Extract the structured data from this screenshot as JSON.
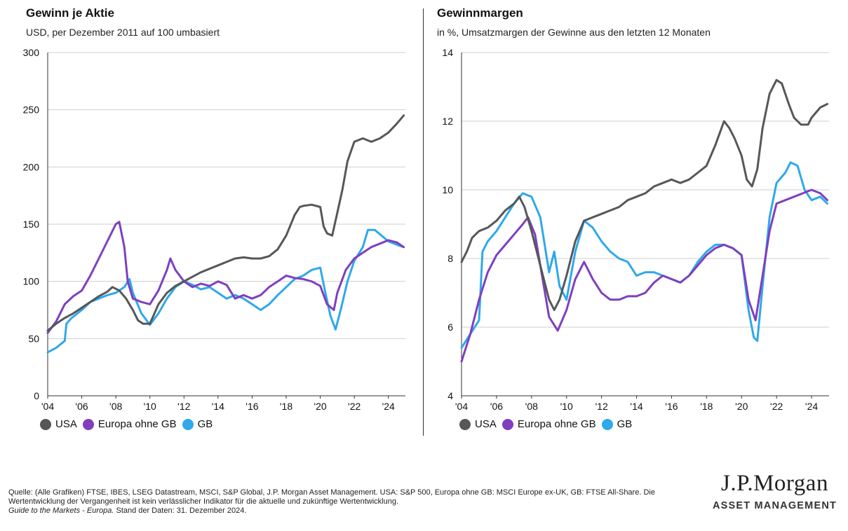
{
  "chart_data": [
    {
      "type": "line",
      "title": "Gewinn je Aktie",
      "subtitle": "USD, per Dezember 2011 auf 100 umbasiert",
      "xlabel": "",
      "ylabel": "",
      "ylim": [
        0,
        300
      ],
      "yticks": [
        "0",
        "50",
        "100",
        "150",
        "200",
        "250",
        "300"
      ],
      "xlim": [
        2004,
        2025
      ],
      "xticks": [
        "'04",
        "'06",
        "'08",
        "'10",
        "'12",
        "'14",
        "'16",
        "'18",
        "'20",
        "'22",
        "'24"
      ],
      "grid": true,
      "legend_position": "bottom-left",
      "series": [
        {
          "name": "USA",
          "color": "#555759",
          "x": [
            2004,
            2004.5,
            2005,
            2005.5,
            2006,
            2006.5,
            2007,
            2007.5,
            2007.8,
            2008.2,
            2008.6,
            2009,
            2009.3,
            2009.6,
            2010,
            2010.5,
            2011,
            2011.5,
            2012,
            2012.5,
            2013,
            2013.5,
            2014,
            2014.5,
            2015,
            2015.5,
            2016,
            2016.5,
            2017,
            2017.5,
            2018,
            2018.5,
            2018.8,
            2019,
            2019.5,
            2020,
            2020.2,
            2020.4,
            2020.7,
            2021,
            2021.3,
            2021.6,
            2022,
            2022.5,
            2023,
            2023.5,
            2024,
            2024.5,
            2024.9
          ],
          "y": [
            57,
            63,
            68,
            72,
            77,
            82,
            87,
            91,
            95,
            92,
            85,
            75,
            66,
            63,
            63,
            80,
            90,
            96,
            100,
            104,
            108,
            111,
            114,
            117,
            120,
            121,
            120,
            120,
            122,
            128,
            140,
            158,
            165,
            166,
            167,
            165,
            148,
            142,
            140,
            160,
            180,
            205,
            222,
            225,
            222,
            225,
            230,
            238,
            245
          ]
        },
        {
          "name": "Europa ohne GB",
          "color": "#7f3fbf",
          "x": [
            2004,
            2004.5,
            2005,
            2005.5,
            2006,
            2006.5,
            2007,
            2007.5,
            2008,
            2008.2,
            2008.5,
            2008.7,
            2009,
            2009.5,
            2010,
            2010.5,
            2011,
            2011.2,
            2011.5,
            2012,
            2012.5,
            2013,
            2013.5,
            2014,
            2014.5,
            2015,
            2015.5,
            2016,
            2016.5,
            2017,
            2017.5,
            2018,
            2018.5,
            2019,
            2019.5,
            2020,
            2020.4,
            2020.8,
            2021,
            2021.5,
            2022,
            2022.5,
            2023,
            2023.5,
            2024,
            2024.5,
            2024.9
          ],
          "y": [
            55,
            65,
            80,
            87,
            92,
            105,
            120,
            135,
            150,
            152,
            130,
            100,
            85,
            82,
            80,
            92,
            110,
            120,
            110,
            100,
            95,
            98,
            96,
            100,
            97,
            85,
            88,
            85,
            88,
            95,
            100,
            105,
            103,
            102,
            100,
            96,
            80,
            75,
            90,
            110,
            120,
            125,
            130,
            133,
            136,
            134,
            130
          ]
        },
        {
          "name": "GB",
          "color": "#2fa8ec",
          "x": [
            2004,
            2004.5,
            2005,
            2005.1,
            2005.4,
            2006,
            2006.5,
            2007,
            2007.5,
            2008,
            2008.5,
            2008.8,
            2009,
            2009.5,
            2010,
            2010.5,
            2011,
            2011.5,
            2012,
            2012.5,
            2013,
            2013.5,
            2014,
            2014.5,
            2015,
            2015.5,
            2016,
            2016.5,
            2017,
            2017.5,
            2018,
            2018.5,
            2019,
            2019.5,
            2020,
            2020.3,
            2020.6,
            2020.9,
            2021.2,
            2021.6,
            2022,
            2022.5,
            2022.8,
            2023.2,
            2023.6,
            2024,
            2024.5,
            2024.9
          ],
          "y": [
            38,
            42,
            48,
            63,
            68,
            75,
            82,
            85,
            88,
            90,
            95,
            102,
            90,
            72,
            62,
            72,
            85,
            95,
            100,
            97,
            93,
            95,
            90,
            85,
            88,
            85,
            80,
            75,
            80,
            88,
            95,
            102,
            105,
            110,
            112,
            90,
            70,
            58,
            75,
            100,
            118,
            130,
            145,
            145,
            140,
            135,
            132,
            130
          ]
        }
      ]
    },
    {
      "type": "line",
      "title": "Gewinnmargen",
      "subtitle": "in %, Umsatzmargen der Gewinne aus den letzten 12 Monaten",
      "xlabel": "",
      "ylabel": "",
      "ylim": [
        4,
        14
      ],
      "yticks": [
        "4",
        "6",
        "8",
        "10",
        "12",
        "14"
      ],
      "xlim": [
        2004,
        2025
      ],
      "xticks": [
        "'04",
        "'06",
        "'08",
        "'10",
        "'12",
        "'14",
        "'16",
        "'18",
        "'20",
        "'22",
        "'24"
      ],
      "grid": true,
      "legend_position": "bottom-left",
      "series": [
        {
          "name": "USA",
          "color": "#555759",
          "x": [
            2004,
            2004.3,
            2004.6,
            2005,
            2005.5,
            2006,
            2006.5,
            2007,
            2007.3,
            2007.6,
            2008,
            2008.5,
            2009,
            2009.3,
            2009.6,
            2010,
            2010.5,
            2011,
            2011.5,
            2012,
            2012.5,
            2013,
            2013.5,
            2014,
            2014.5,
            2015,
            2015.5,
            2016,
            2016.5,
            2017,
            2017.5,
            2018,
            2018.5,
            2019,
            2019.3,
            2019.6,
            2020,
            2020.3,
            2020.6,
            2020.9,
            2021.2,
            2021.6,
            2022,
            2022.3,
            2022.7,
            2023,
            2023.4,
            2023.8,
            2024,
            2024.5,
            2024.9
          ],
          "y": [
            7.9,
            8.2,
            8.6,
            8.8,
            8.9,
            9.1,
            9.4,
            9.6,
            9.8,
            9.5,
            8.8,
            7.8,
            6.8,
            6.5,
            6.8,
            7.5,
            8.5,
            9.1,
            9.2,
            9.3,
            9.4,
            9.5,
            9.7,
            9.8,
            9.9,
            10.1,
            10.2,
            10.3,
            10.2,
            10.3,
            10.5,
            10.7,
            11.3,
            12.0,
            11.8,
            11.5,
            11.0,
            10.3,
            10.1,
            10.6,
            11.8,
            12.8,
            13.2,
            13.1,
            12.5,
            12.1,
            11.9,
            11.9,
            12.1,
            12.4,
            12.5
          ]
        },
        {
          "name": "Europa ohne GB",
          "color": "#7f3fbf",
          "x": [
            2004,
            2004.5,
            2005,
            2005.5,
            2006,
            2006.5,
            2007,
            2007.5,
            2007.8,
            2008.2,
            2008.6,
            2009,
            2009.5,
            2010,
            2010.5,
            2011,
            2011.5,
            2012,
            2012.5,
            2013,
            2013.5,
            2014,
            2014.5,
            2015,
            2015.5,
            2016,
            2016.5,
            2017,
            2017.5,
            2018,
            2018.5,
            2019,
            2019.5,
            2020,
            2020.4,
            2020.8,
            2021.2,
            2021.6,
            2022,
            2022.5,
            2023,
            2023.5,
            2024,
            2024.5,
            2024.9
          ],
          "y": [
            5.0,
            5.8,
            6.8,
            7.6,
            8.1,
            8.4,
            8.7,
            9.0,
            9.2,
            8.7,
            7.5,
            6.3,
            5.9,
            6.5,
            7.4,
            7.9,
            7.4,
            7.0,
            6.8,
            6.8,
            6.9,
            6.9,
            7.0,
            7.3,
            7.5,
            7.4,
            7.3,
            7.5,
            7.8,
            8.1,
            8.3,
            8.4,
            8.3,
            8.1,
            6.8,
            6.2,
            7.5,
            8.8,
            9.6,
            9.7,
            9.8,
            9.9,
            10.0,
            9.9,
            9.7
          ]
        },
        {
          "name": "GB",
          "color": "#2fa8ec",
          "x": [
            2004,
            2004.5,
            2005,
            2005.2,
            2005.5,
            2006,
            2006.5,
            2007,
            2007.5,
            2008,
            2008.5,
            2009,
            2009.3,
            2009.6,
            2010,
            2010.5,
            2011,
            2011.5,
            2012,
            2012.5,
            2013,
            2013.5,
            2014,
            2014.5,
            2015,
            2015.5,
            2016,
            2016.5,
            2017,
            2017.5,
            2018,
            2018.5,
            2019,
            2019.5,
            2020,
            2020.4,
            2020.7,
            2020.9,
            2021.2,
            2021.6,
            2022,
            2022.5,
            2022.8,
            2023.2,
            2023.6,
            2024,
            2024.5,
            2024.9
          ],
          "y": [
            5.4,
            5.8,
            6.2,
            8.2,
            8.5,
            8.8,
            9.2,
            9.6,
            9.9,
            9.8,
            9.2,
            7.6,
            8.2,
            7.2,
            6.8,
            8.2,
            9.1,
            8.9,
            8.5,
            8.2,
            8.0,
            7.9,
            7.5,
            7.6,
            7.6,
            7.5,
            7.4,
            7.3,
            7.5,
            7.9,
            8.2,
            8.4,
            8.4,
            8.3,
            8.1,
            6.5,
            5.7,
            5.6,
            7.2,
            9.2,
            10.2,
            10.5,
            10.8,
            10.7,
            10.0,
            9.7,
            9.8,
            9.6
          ]
        }
      ]
    }
  ],
  "footer": {
    "line1": "Quelle: (Alle Grafiken) FTSE, IBES, LSEG Datastream, MSCI, S&P Global, J.P. Morgan Asset Management. USA: S&P 500, Europa ohne GB: MSCI Europe ex-UK, GB: FTSE All-Share. Die Wertentwicklung der Vergangenheit ist kein verlässlicher Indikator für die aktuelle und zukünftige Wertentwicklung.",
    "italic": "Guide to the Markets - Europa.",
    "date": " Stand der Daten: 31. Dezember 2024."
  },
  "logo": {
    "main": "J.P.Morgan",
    "sub": "ASSET MANAGEMENT"
  }
}
